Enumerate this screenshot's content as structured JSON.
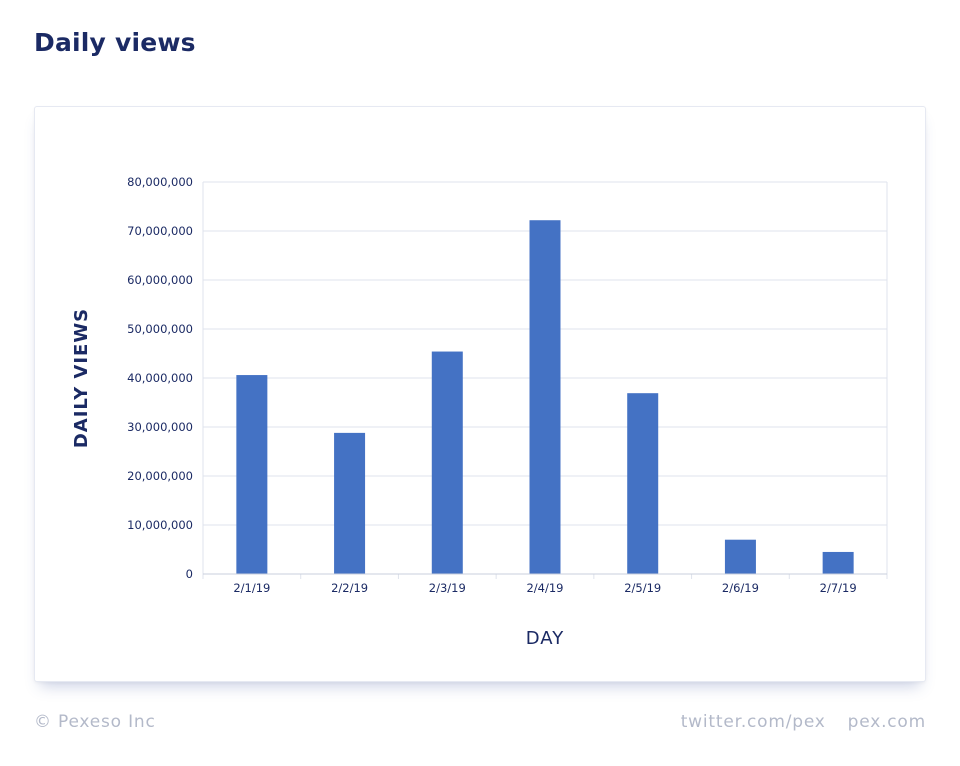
{
  "page": {
    "title": "Daily views"
  },
  "footer": {
    "copyright": "© Pexeso Inc",
    "links": [
      "twitter.com/pex",
      "pex.com"
    ]
  },
  "colors": {
    "bar": "#4472c4",
    "title": "#1b2a64",
    "grid": "#dfe3ec",
    "tick_text": "#1b2a64",
    "footer_text": "#b3b9c9"
  },
  "chart_data": {
    "type": "bar",
    "title": "",
    "xlabel": "DAY",
    "ylabel": "DAILY VIEWS",
    "categories": [
      "2/1/19",
      "2/2/19",
      "2/3/19",
      "2/4/19",
      "2/5/19",
      "2/6/19",
      "2/7/19"
    ],
    "values": [
      40600000,
      28800000,
      45400000,
      72200000,
      36900000,
      7000000,
      4500000
    ],
    "ylim": [
      0,
      80000000
    ],
    "yticks": [
      0,
      10000000,
      20000000,
      30000000,
      40000000,
      50000000,
      60000000,
      70000000,
      80000000
    ],
    "ytick_labels": [
      "0",
      "10,000,000",
      "20,000,000",
      "30,000,000",
      "40,000,000",
      "50,000,000",
      "60,000,000",
      "70,000,000",
      "80,000,000"
    ],
    "grid": true,
    "legend": "none"
  }
}
